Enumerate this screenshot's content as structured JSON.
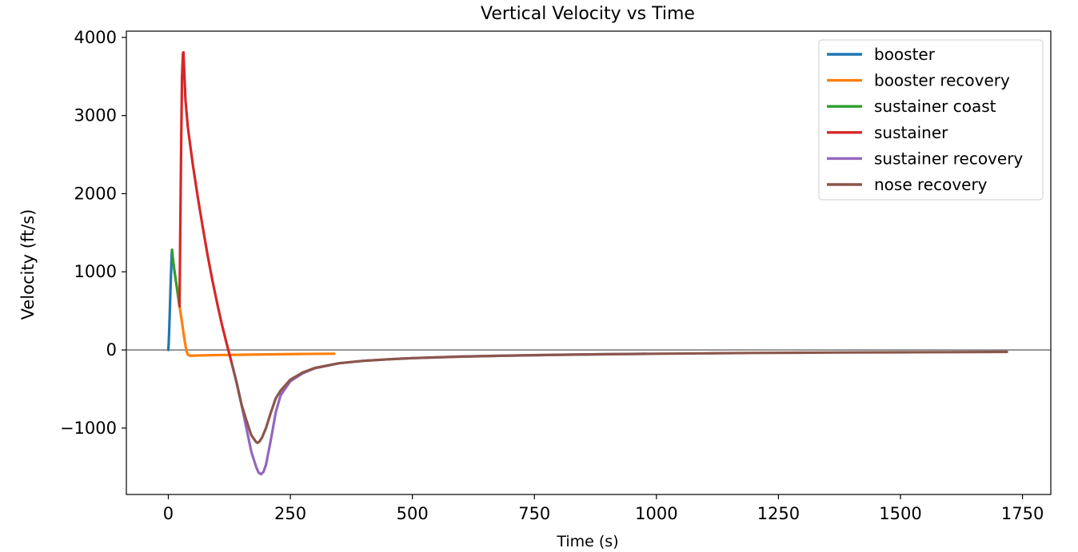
{
  "chart_data": {
    "type": "line",
    "title": "Vertical Velocity vs Time",
    "xlabel": "Time (s)",
    "ylabel": "Velocity (ft/s)",
    "xlim": [
      -86,
      1808
    ],
    "ylim": [
      -1850,
      4080
    ],
    "xticks": [
      0,
      250,
      500,
      750,
      1000,
      1250,
      1500,
      1750
    ],
    "xtick_labels": [
      "0",
      "250",
      "500",
      "750",
      "1000",
      "1250",
      "1500",
      "1750"
    ],
    "yticks": [
      -1000,
      0,
      1000,
      2000,
      3000,
      4000
    ],
    "ytick_labels": [
      "−1000",
      "0",
      "1000",
      "2000",
      "3000",
      "4000"
    ],
    "zero_line": true,
    "grid": false,
    "legend_position": "top-right",
    "series": [
      {
        "name": "booster",
        "color": "#1f77b4",
        "x": [
          0,
          1,
          2,
          3,
          4,
          5,
          6,
          7,
          7.5
        ],
        "y": [
          0,
          120,
          290,
          480,
          680,
          880,
          1080,
          1250,
          1280
        ]
      },
      {
        "name": "booster recovery",
        "color": "#ff7f0e",
        "x": [
          7.5,
          10,
          13,
          16,
          19,
          22,
          25,
          28,
          31,
          34,
          37,
          40,
          45,
          55,
          80,
          120,
          170,
          220,
          270,
          340
        ],
        "y": [
          1280,
          1130,
          990,
          860,
          730,
          600,
          480,
          350,
          220,
          100,
          -10,
          -60,
          -75,
          -72,
          -68,
          -64,
          -60,
          -56,
          -52,
          -48
        ]
      },
      {
        "name": "sustainer coast",
        "color": "#2ca02c",
        "x": [
          7.5,
          10,
          13,
          16,
          19,
          22,
          23
        ],
        "y": [
          1280,
          1130,
          990,
          860,
          730,
          600,
          560
        ]
      },
      {
        "name": "sustainer",
        "color": "#d62728",
        "x": [
          23,
          24,
          26,
          28,
          30,
          31,
          35,
          40,
          50,
          60,
          70,
          80,
          90,
          100,
          110,
          120,
          130
        ],
        "y": [
          560,
          1200,
          2500,
          3500,
          3800,
          3810,
          3200,
          2850,
          2380,
          1970,
          1590,
          1230,
          900,
          600,
          320,
          70,
          -170
        ]
      },
      {
        "name": "sustainer recovery",
        "color": "#9467bd",
        "x": [
          130,
          140,
          150,
          160,
          170,
          180,
          185,
          190,
          195,
          200,
          210,
          220,
          230,
          250,
          275,
          300,
          350,
          400,
          450,
          500,
          600,
          700,
          800,
          900,
          980
        ],
        "y": [
          -170,
          -420,
          -700,
          -1000,
          -1300,
          -1500,
          -1570,
          -1590,
          -1560,
          -1470,
          -1150,
          -800,
          -580,
          -400,
          -300,
          -235,
          -170,
          -140,
          -120,
          -105,
          -85,
          -72,
          -62,
          -55,
          -50
        ]
      },
      {
        "name": "nose recovery",
        "color": "#8c564b",
        "x": [
          130,
          140,
          150,
          160,
          170,
          180,
          183,
          187,
          192,
          200,
          210,
          220,
          230,
          250,
          275,
          300,
          350,
          400,
          450,
          500,
          600,
          700,
          800,
          900,
          1000,
          1100,
          1200,
          1300,
          1400,
          1500,
          1600,
          1718
        ],
        "y": [
          -170,
          -420,
          -700,
          -900,
          -1090,
          -1180,
          -1190,
          -1170,
          -1120,
          -1000,
          -800,
          -620,
          -520,
          -380,
          -290,
          -230,
          -170,
          -140,
          -120,
          -105,
          -85,
          -72,
          -62,
          -55,
          -48,
          -43,
          -38,
          -35,
          -32,
          -30,
          -28,
          -25
        ]
      }
    ]
  }
}
